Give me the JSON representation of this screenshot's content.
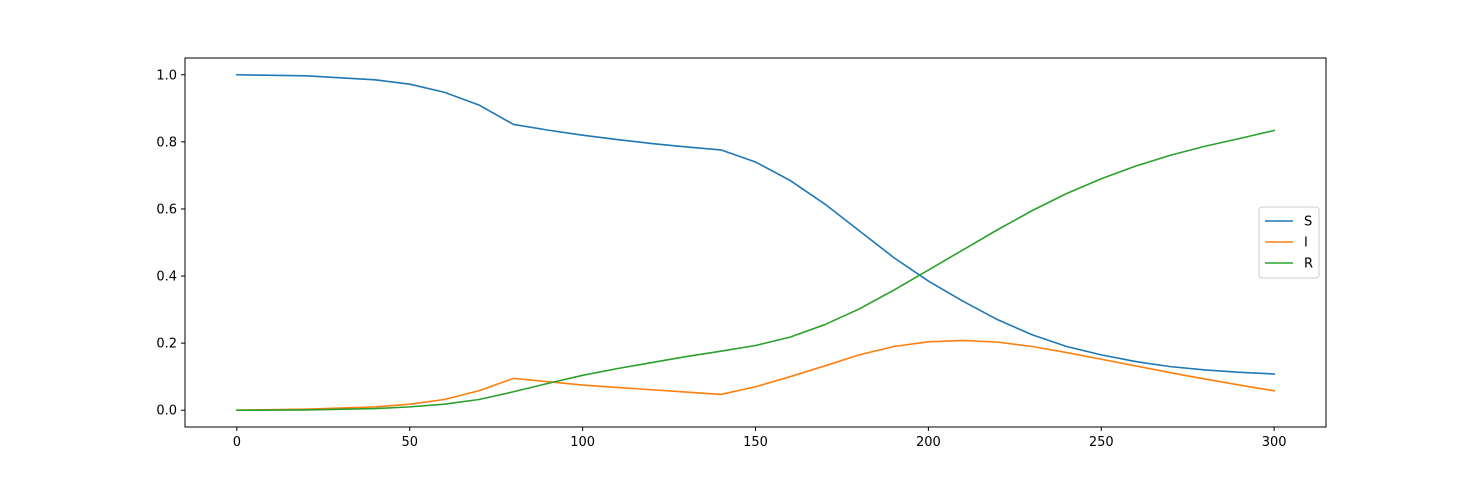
{
  "chart_data": {
    "type": "line",
    "title": "",
    "xlabel": "",
    "ylabel": "",
    "xlim": [
      -15,
      315
    ],
    "ylim": [
      -0.05,
      1.05
    ],
    "xticks": [
      0,
      50,
      100,
      150,
      200,
      250,
      300
    ],
    "yticks": [
      0.0,
      0.2,
      0.4,
      0.6,
      0.8,
      1.0
    ],
    "xtick_labels": [
      "0",
      "50",
      "100",
      "150",
      "200",
      "250",
      "300"
    ],
    "ytick_labels": [
      "0.0",
      "0.2",
      "0.4",
      "0.6",
      "0.8",
      "1.0"
    ],
    "grid": false,
    "legend_position": "center-right",
    "x": [
      0,
      20,
      40,
      50,
      60,
      70,
      80,
      90,
      100,
      110,
      120,
      130,
      140,
      150,
      160,
      170,
      180,
      190,
      200,
      210,
      220,
      230,
      240,
      250,
      260,
      270,
      280,
      290,
      300
    ],
    "series": [
      {
        "name": "S",
        "color": "#1f77b4",
        "values": [
          1.0,
          0.997,
          0.985,
          0.972,
          0.948,
          0.91,
          0.852,
          0.835,
          0.82,
          0.807,
          0.795,
          0.785,
          0.776,
          0.74,
          0.685,
          0.615,
          0.535,
          0.455,
          0.385,
          0.325,
          0.27,
          0.225,
          0.19,
          0.165,
          0.145,
          0.13,
          0.12,
          0.113,
          0.108
        ]
      },
      {
        "name": "I",
        "color": "#ff7f0e",
        "values": [
          0.0,
          0.003,
          0.01,
          0.018,
          0.032,
          0.058,
          0.095,
          0.085,
          0.075,
          0.068,
          0.061,
          0.054,
          0.047,
          0.07,
          0.1,
          0.132,
          0.165,
          0.19,
          0.204,
          0.208,
          0.203,
          0.19,
          0.172,
          0.152,
          0.132,
          0.112,
          0.093,
          0.075,
          0.058
        ]
      },
      {
        "name": "R",
        "color": "#2ca02c",
        "values": [
          0.0,
          0.001,
          0.005,
          0.01,
          0.018,
          0.032,
          0.055,
          0.08,
          0.104,
          0.124,
          0.142,
          0.16,
          0.176,
          0.193,
          0.218,
          0.255,
          0.302,
          0.358,
          0.418,
          0.478,
          0.538,
          0.595,
          0.646,
          0.69,
          0.728,
          0.76,
          0.787,
          0.81,
          0.834
        ]
      }
    ]
  }
}
